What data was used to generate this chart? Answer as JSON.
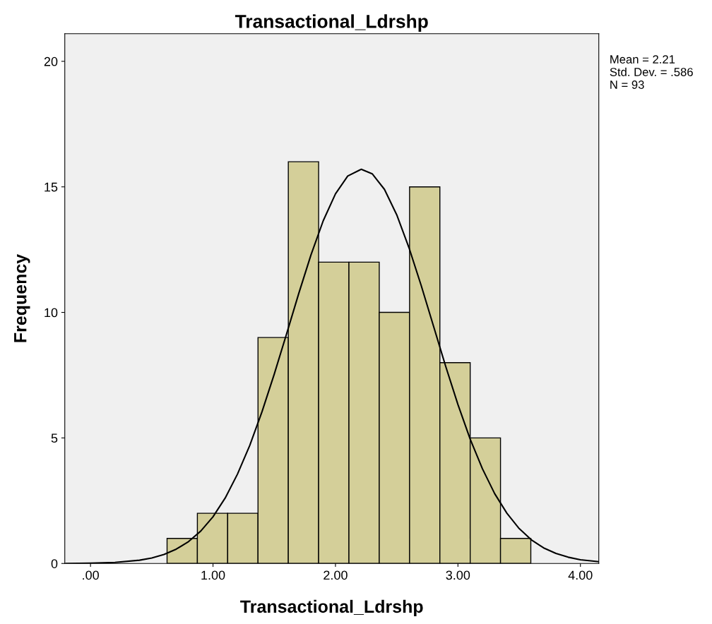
{
  "chart_data": {
    "type": "histogram",
    "title": "Transactional_Ldrshp",
    "xlabel": "Transactional_Ldrshp",
    "ylabel": "Frequency",
    "series": [
      {
        "type": "histogram",
        "color": "#d4cf99",
        "bins": [
          0.625,
          0.8725,
          1.12,
          1.3675,
          1.615,
          1.8625,
          2.11,
          2.3575,
          2.605,
          2.8525,
          3.1,
          3.3475,
          3.595
        ],
        "values": [
          1,
          2,
          2,
          9,
          16,
          12,
          12,
          10,
          15,
          8,
          5,
          1
        ]
      },
      {
        "type": "line",
        "color": "#000000",
        "x": [
          -0.2,
          0,
          0.2,
          0.4,
          0.5,
          0.6,
          0.7,
          0.8,
          0.9,
          1.0,
          1.1,
          1.2,
          1.3,
          1.4,
          1.5,
          1.6,
          1.7,
          1.8,
          1.9,
          2.0,
          2.1,
          2.21,
          2.3,
          2.4,
          2.5,
          2.6,
          2.7,
          2.8,
          2.9,
          3.0,
          3.1,
          3.2,
          3.3,
          3.4,
          3.5,
          3.6,
          3.7,
          3.8,
          3.9,
          4.0,
          4.15
        ],
        "values": [
          0.0,
          0.01,
          0.04,
          0.13,
          0.22,
          0.36,
          0.57,
          0.87,
          1.29,
          1.86,
          2.61,
          3.56,
          4.7,
          6.04,
          7.54,
          9.13,
          10.75,
          12.29,
          13.65,
          14.72,
          15.43,
          15.7,
          15.52,
          14.9,
          13.89,
          12.58,
          11.07,
          9.46,
          7.85,
          6.33,
          4.95,
          3.77,
          2.78,
          2.0,
          1.39,
          0.94,
          0.62,
          0.4,
          0.25,
          0.15,
          0.07
        ]
      }
    ],
    "xlim": [
      -0.21,
      4.15
    ],
    "xticks": [
      {
        "value": 0,
        "label": ".00"
      },
      {
        "value": 1,
        "label": "1.00"
      },
      {
        "value": 2,
        "label": "2.00"
      },
      {
        "value": 3,
        "label": "3.00"
      },
      {
        "value": 4,
        "label": "4.00"
      }
    ],
    "ylim": [
      0,
      21.1
    ],
    "yticks": [
      0,
      5,
      10,
      15,
      20
    ],
    "grid": false,
    "legend": false,
    "annotations": [
      "Mean = 2.21",
      "Std. Dev. = .586",
      "N = 93"
    ]
  }
}
